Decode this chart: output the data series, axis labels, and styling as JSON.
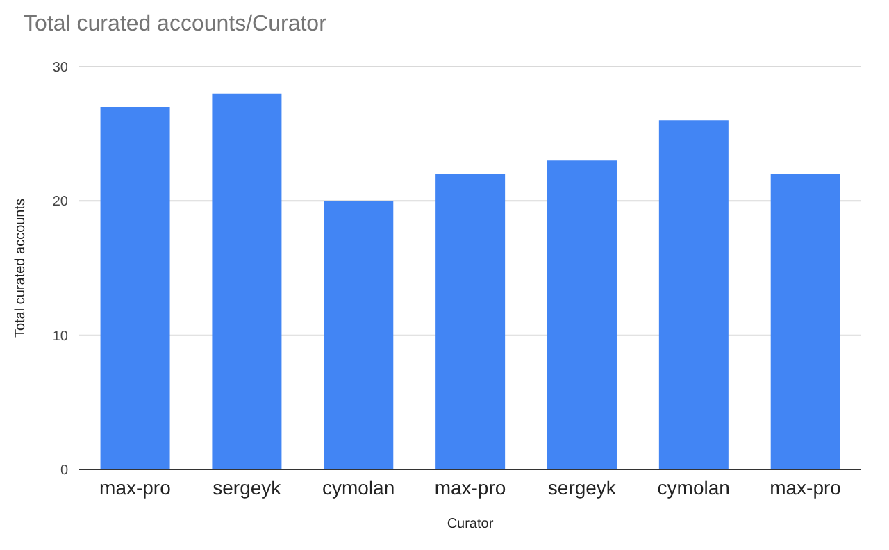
{
  "chart_data": {
    "type": "bar",
    "title": "Total curated accounts/Curator",
    "xlabel": "Curator",
    "ylabel": "Total curated accounts",
    "categories": [
      "max-pro",
      "sergeyk",
      "cymolan",
      "max-pro",
      "sergeyk",
      "cymolan",
      "max-pro"
    ],
    "values": [
      27,
      28,
      20,
      22,
      23,
      26,
      22
    ],
    "color": "#4285f4",
    "ylim": [
      0,
      30
    ],
    "yticks": [
      0,
      10,
      20,
      30
    ],
    "grid": "y"
  }
}
